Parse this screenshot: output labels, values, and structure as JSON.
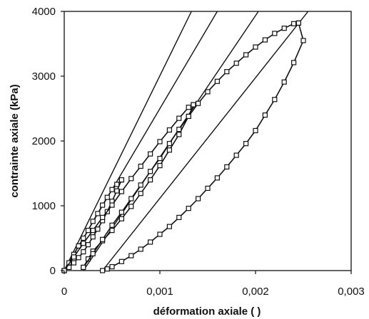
{
  "chart_data": {
    "type": "scatter",
    "xlabel": "déformation axiale ( )",
    "ylabel": "contrainte axiale (kPa)",
    "xlim": [
      0,
      0.003
    ],
    "ylim": [
      0,
      4000
    ],
    "xticks": [
      "0",
      "0,001",
      "0,002",
      "0,003"
    ],
    "yticks": [
      "0",
      "1000",
      "2000",
      "3000",
      "4000"
    ],
    "grid": false,
    "legend": "none",
    "colors": {
      "ink": "#111111",
      "marker_fill": "#ffffff",
      "frame": "#111111"
    },
    "reference_lines": [
      {
        "x": [
          0.0,
          0.00133
        ],
        "y": [
          0,
          4000
        ]
      },
      {
        "x": [
          0.0,
          0.0016
        ],
        "y": [
          0,
          4000
        ]
      },
      {
        "x": [
          0.0002,
          0.00203
        ],
        "y": [
          0,
          4000
        ]
      },
      {
        "x": [
          0.0004,
          0.00255
        ],
        "y": [
          0,
          4000
        ]
      }
    ],
    "series": [
      {
        "x": [
          0.0,
          5e-05,
          0.0001,
          0.00015,
          0.0002,
          0.00025,
          0.0003,
          0.00035,
          0.0004,
          0.00045,
          0.0005,
          0.00055,
          0.0006
        ],
        "y": [
          0,
          120,
          250,
          380,
          500,
          620,
          760,
          880,
          1010,
          1130,
          1250,
          1330,
          1400
        ]
      },
      {
        "x": [
          0.0006,
          0.00055,
          0.0005,
          0.00045,
          0.0004,
          0.00035,
          0.0003,
          0.00025,
          0.0002,
          0.00015,
          0.0001,
          5e-05,
          0.0
        ],
        "y": [
          1400,
          1230,
          1070,
          910,
          770,
          640,
          520,
          400,
          290,
          200,
          120,
          50,
          0
        ]
      },
      {
        "x": [
          0.0,
          0.0001,
          0.0002,
          0.0003,
          0.0004,
          0.0005,
          0.0006,
          0.0007,
          0.0008,
          0.0009,
          0.001,
          0.0011,
          0.0012,
          0.0013,
          0.00135
        ],
        "y": [
          0,
          210,
          420,
          620,
          820,
          1010,
          1220,
          1420,
          1610,
          1800,
          1990,
          2170,
          2350,
          2520,
          2560
        ]
      },
      {
        "x": [
          0.00135,
          0.0013,
          0.0012,
          0.0011,
          0.001,
          0.0009,
          0.0008,
          0.0007,
          0.0006,
          0.0005,
          0.0004,
          0.0003,
          0.00025,
          0.0002
        ],
        "y": [
          2560,
          2380,
          2100,
          1860,
          1620,
          1400,
          1190,
          990,
          800,
          620,
          460,
          300,
          180,
          50
        ]
      },
      {
        "x": [
          0.0002,
          0.0003,
          0.0004,
          0.0005,
          0.0006,
          0.0007,
          0.0008,
          0.0009,
          0.001,
          0.0011,
          0.0012,
          0.0013,
          0.0014,
          0.0015,
          0.0016,
          0.0017,
          0.0018,
          0.0019,
          0.002,
          0.0021,
          0.0022,
          0.0023,
          0.0024,
          0.00245
        ],
        "y": [
          50,
          260,
          480,
          700,
          900,
          1110,
          1320,
          1530,
          1730,
          1960,
          2180,
          2380,
          2580,
          2760,
          2920,
          3070,
          3200,
          3330,
          3450,
          3560,
          3660,
          3740,
          3810,
          3820
        ]
      },
      {
        "x": [
          0.00245,
          0.0025,
          0.0024,
          0.0023,
          0.0022,
          0.0021,
          0.002,
          0.0019,
          0.0018,
          0.0017,
          0.0016,
          0.0015,
          0.0014,
          0.0013,
          0.0012,
          0.0011,
          0.001,
          0.0009,
          0.0008,
          0.0007,
          0.0006,
          0.0005,
          0.00045,
          0.0004
        ],
        "y": [
          3820,
          3550,
          3210,
          2910,
          2640,
          2400,
          2160,
          1960,
          1780,
          1600,
          1430,
          1270,
          1110,
          960,
          820,
          680,
          560,
          440,
          330,
          230,
          140,
          60,
          25,
          0
        ]
      }
    ]
  }
}
